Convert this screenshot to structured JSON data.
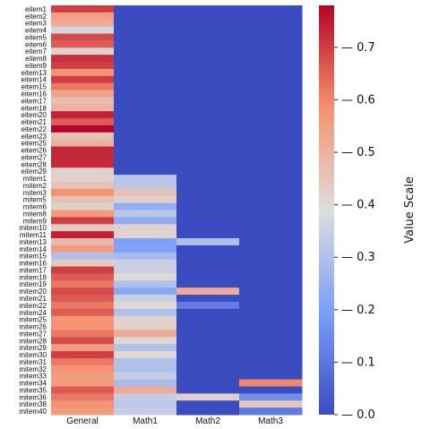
{
  "chart_data": {
    "type": "heatmap",
    "columns": [
      "General",
      "Math1",
      "Math2",
      "Math3"
    ],
    "rows": [
      "eitem1",
      "eitem2",
      "eitem3",
      "eitem4",
      "eitem5",
      "eitem6",
      "eitem7",
      "eitem8",
      "eitem9",
      "eitem13",
      "eitem14",
      "eitem15",
      "eitem16",
      "eitem17",
      "eitem18",
      "eitem20",
      "eitem21",
      "eitem22",
      "eitem23",
      "eitem25",
      "eitem26",
      "eitem27",
      "eitem28",
      "eitem29",
      "mitem1",
      "mitem2",
      "mitem3",
      "mitem5",
      "mitem6",
      "mitem8",
      "mitem9",
      "mitem10",
      "mitem11",
      "mitem13",
      "mitem14",
      "mitem15",
      "mitem16",
      "mitem17",
      "mitem18",
      "mitem19",
      "mitem20",
      "mitem21",
      "mitem22",
      "mitem24",
      "mitem25",
      "mitem26",
      "mitem27",
      "mitem28",
      "mitem29",
      "mitem30",
      "mitem31",
      "mitem32",
      "mitem33",
      "mitem34",
      "mitem35",
      "mitem36",
      "mitem38",
      "mitem40"
    ],
    "values": [
      [
        0.7,
        0,
        0,
        0
      ],
      [
        0.55,
        0,
        0,
        0
      ],
      [
        0.52,
        0,
        0,
        0
      ],
      [
        0.37,
        0,
        0,
        0
      ],
      [
        0.68,
        0,
        0,
        0
      ],
      [
        0.66,
        0,
        0,
        0
      ],
      [
        0.42,
        0,
        0,
        0
      ],
      [
        0.72,
        0,
        0,
        0
      ],
      [
        0.7,
        0,
        0,
        0
      ],
      [
        0.58,
        0,
        0,
        0
      ],
      [
        0.7,
        0,
        0,
        0
      ],
      [
        0.62,
        0,
        0,
        0
      ],
      [
        0.54,
        0,
        0,
        0
      ],
      [
        0.47,
        0,
        0,
        0
      ],
      [
        0.5,
        0,
        0,
        0
      ],
      [
        0.74,
        0,
        0,
        0
      ],
      [
        0.66,
        0,
        0,
        0
      ],
      [
        0.78,
        0,
        0,
        0
      ],
      [
        0.46,
        0,
        0,
        0
      ],
      [
        0.5,
        0,
        0,
        0
      ],
      [
        0.73,
        0,
        0,
        0
      ],
      [
        0.73,
        0,
        0,
        0
      ],
      [
        0.73,
        0,
        0,
        0
      ],
      [
        0.42,
        0,
        0,
        0
      ],
      [
        0.42,
        0.32,
        0,
        0
      ],
      [
        0.46,
        0.32,
        0,
        0
      ],
      [
        0.58,
        0.46,
        0,
        0
      ],
      [
        0.46,
        0.42,
        0,
        0
      ],
      [
        0.42,
        0.24,
        0,
        0
      ],
      [
        0.56,
        0.32,
        0,
        0
      ],
      [
        0.7,
        0.24,
        0,
        0
      ],
      [
        0.44,
        0.42,
        0,
        0
      ],
      [
        0.74,
        0.42,
        0,
        0
      ],
      [
        0.48,
        0.2,
        0.3,
        0
      ],
      [
        0.56,
        0.2,
        0,
        0
      ],
      [
        0.3,
        0.28,
        0,
        0
      ],
      [
        0.44,
        0.35,
        0,
        0
      ],
      [
        0.7,
        0.35,
        0,
        0
      ],
      [
        0.66,
        0.4,
        0,
        0
      ],
      [
        0.62,
        0.3,
        0,
        0
      ],
      [
        0.68,
        0.22,
        0.52,
        0
      ],
      [
        0.66,
        0.35,
        0,
        0
      ],
      [
        0.62,
        0.4,
        0.12,
        0
      ],
      [
        0.66,
        0.3,
        0,
        0
      ],
      [
        0.58,
        0.42,
        0,
        0
      ],
      [
        0.58,
        0.42,
        0,
        0
      ],
      [
        0.62,
        0.52,
        0,
        0
      ],
      [
        0.68,
        0.4,
        0,
        0
      ],
      [
        0.56,
        0.3,
        0,
        0
      ],
      [
        0.7,
        0.4,
        0,
        0
      ],
      [
        0.62,
        0.3,
        0,
        0
      ],
      [
        0.58,
        0.3,
        0,
        0
      ],
      [
        0.56,
        0.34,
        0,
        0
      ],
      [
        0.56,
        0.28,
        0,
        0.6
      ],
      [
        0.66,
        0.52,
        0,
        0
      ],
      [
        0.62,
        0.34,
        0.43,
        0.16
      ],
      [
        0.58,
        0.32,
        0,
        0.45
      ],
      [
        0.56,
        0.34,
        0,
        0.11
      ]
    ],
    "colormap": "coolwarm",
    "vmin": 0.0,
    "vmax": 0.78,
    "colorbar": {
      "label": "Value Scale",
      "ticks": [
        0.0,
        0.1,
        0.2,
        0.3,
        0.4,
        0.5,
        0.6,
        0.7
      ],
      "tick_labels": [
        "0.0",
        "0.1",
        "0.2",
        "0.3",
        "0.4",
        "0.5",
        "0.6",
        "0.7"
      ]
    }
  }
}
